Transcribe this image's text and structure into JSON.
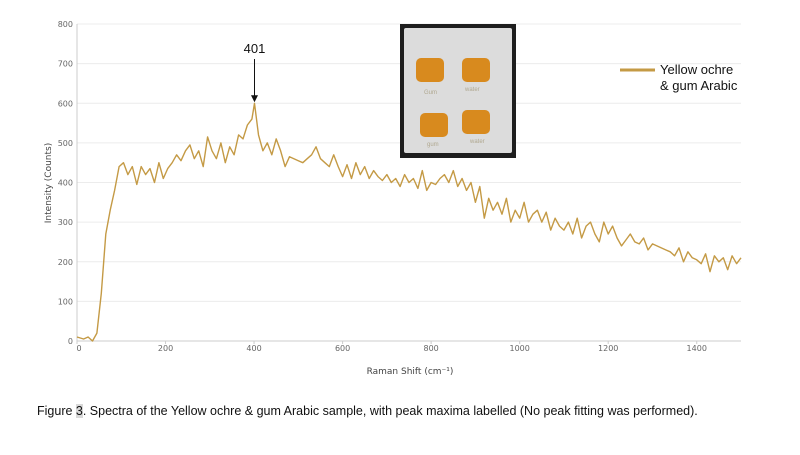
{
  "chart_data": {
    "type": "line",
    "xlabel": "Raman Shift (cm⁻¹)",
    "ylabel": "Intensity (Counts)",
    "xlim": [
      0,
      1500
    ],
    "ylim": [
      0,
      800
    ],
    "x_ticks": [
      0,
      200,
      400,
      600,
      800,
      1000,
      1200,
      1400
    ],
    "y_ticks": [
      0,
      100,
      200,
      300,
      400,
      500,
      600,
      700,
      800
    ],
    "grid": "horizontal",
    "legend_position": "top-right",
    "series": [
      {
        "name": "Yellow ochre & gum Arabic",
        "color": "#c49a45",
        "x": [
          0,
          15,
          25,
          35,
          45,
          55,
          65,
          75,
          85,
          95,
          105,
          115,
          125,
          135,
          145,
          155,
          165,
          175,
          185,
          195,
          205,
          215,
          225,
          235,
          245,
          255,
          265,
          275,
          285,
          295,
          305,
          315,
          325,
          335,
          345,
          355,
          365,
          375,
          385,
          395,
          401,
          410,
          420,
          430,
          440,
          450,
          460,
          470,
          480,
          490,
          500,
          510,
          520,
          530,
          540,
          550,
          560,
          570,
          580,
          590,
          600,
          610,
          620,
          630,
          640,
          650,
          660,
          670,
          680,
          690,
          700,
          710,
          720,
          730,
          740,
          750,
          760,
          770,
          780,
          790,
          800,
          810,
          820,
          830,
          840,
          850,
          860,
          870,
          880,
          890,
          900,
          910,
          920,
          930,
          940,
          950,
          960,
          970,
          980,
          990,
          1000,
          1010,
          1020,
          1030,
          1040,
          1050,
          1060,
          1070,
          1080,
          1090,
          1100,
          1110,
          1120,
          1130,
          1140,
          1150,
          1160,
          1170,
          1180,
          1190,
          1200,
          1210,
          1220,
          1230,
          1240,
          1250,
          1260,
          1270,
          1280,
          1290,
          1300,
          1310,
          1320,
          1330,
          1340,
          1350,
          1360,
          1370,
          1380,
          1390,
          1400,
          1410,
          1420,
          1430,
          1440,
          1450,
          1460,
          1470,
          1480,
          1490,
          1500
        ],
        "y": [
          10,
          5,
          10,
          0,
          20,
          120,
          270,
          330,
          380,
          440,
          450,
          420,
          440,
          395,
          440,
          420,
          435,
          400,
          450,
          410,
          435,
          450,
          470,
          455,
          480,
          495,
          460,
          480,
          440,
          515,
          480,
          460,
          500,
          450,
          490,
          470,
          520,
          510,
          545,
          560,
          600,
          520,
          480,
          500,
          470,
          510,
          480,
          440,
          465,
          460,
          455,
          450,
          460,
          470,
          490,
          460,
          450,
          440,
          470,
          440,
          415,
          445,
          410,
          450,
          420,
          440,
          410,
          430,
          415,
          405,
          420,
          400,
          410,
          390,
          420,
          400,
          410,
          385,
          430,
          380,
          400,
          395,
          410,
          420,
          400,
          430,
          390,
          410,
          380,
          400,
          350,
          390,
          310,
          360,
          330,
          350,
          320,
          360,
          300,
          330,
          310,
          350,
          300,
          320,
          330,
          300,
          325,
          280,
          310,
          290,
          280,
          300,
          270,
          310,
          260,
          290,
          300,
          270,
          250,
          300,
          270,
          290,
          260,
          240,
          255,
          270,
          250,
          245,
          260,
          230,
          245,
          240,
          235,
          230,
          225,
          215,
          235,
          200,
          225,
          210,
          205,
          195,
          220,
          175,
          215,
          200,
          210,
          180,
          215,
          195,
          210
        ]
      }
    ],
    "annotations": [
      {
        "text": "401",
        "x": 401,
        "y": 600
      }
    ]
  },
  "caption": {
    "prefix": "Figure ",
    "number": "3",
    "text": ". Spectra of the Yellow ochre & gum Arabic sample, with peak maxima labelled (No peak fitting was performed)."
  },
  "inset_photo": {
    "colors": {
      "background": "#1e1e1e",
      "card": "#dcdcdc",
      "swatch": "#d88a1e"
    },
    "labels": [
      "Gum",
      "water",
      "gum",
      "water"
    ]
  }
}
